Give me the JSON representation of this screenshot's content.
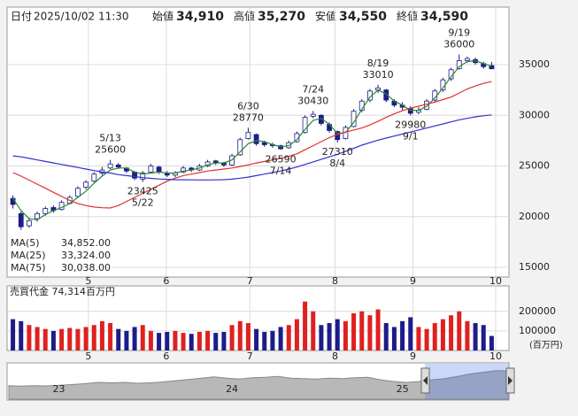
{
  "header": {
    "date_label": "日付",
    "datetime": "2025/10/02 11:30",
    "items": [
      {
        "label": "始値",
        "value": "34,910",
        "color": "#000000"
      },
      {
        "label": "高値",
        "value": "35,270",
        "color": "#e02020"
      },
      {
        "label": "安値",
        "value": "34,550",
        "color": "#1a9a1a"
      },
      {
        "label": "終値",
        "value": "34,590",
        "color": "#000000"
      }
    ]
  },
  "chart_data": [
    {
      "type": "candlestick",
      "categories": [
        null,
        null,
        null,
        null,
        null,
        null,
        null,
        null,
        null,
        null,
        null,
        null,
        null,
        null,
        null,
        null,
        null,
        null,
        null,
        null,
        null,
        null,
        null,
        null,
        null,
        null,
        null,
        null,
        null,
        null,
        null,
        null,
        null,
        null,
        null,
        null,
        null,
        null,
        null,
        null,
        null,
        null,
        null,
        null,
        null,
        null,
        null,
        null,
        null,
        null,
        null,
        null,
        null,
        null,
        null,
        null,
        null,
        null,
        null,
        null
      ],
      "open": [
        21800,
        20300,
        19100,
        19800,
        20300,
        20900,
        20700,
        21300,
        22000,
        22900,
        23500,
        24300,
        24800,
        25100,
        24800,
        24400,
        23700,
        24400,
        24900,
        24300,
        24100,
        24400,
        24800,
        24600,
        25000,
        25500,
        25300,
        25100,
        26100,
        27700,
        28100,
        27300,
        27100,
        27000,
        26800,
        27400,
        28300,
        29900,
        30000,
        29100,
        28400,
        27700,
        28900,
        30500,
        31500,
        32500,
        32500,
        31400,
        31000,
        30700,
        30300,
        30600,
        31500,
        32500,
        33600,
        34600,
        35400,
        35500,
        35100,
        34910
      ],
      "high": [
        22100,
        20500,
        19900,
        20500,
        21000,
        21100,
        21600,
        22100,
        23000,
        23600,
        24400,
        24900,
        25600,
        25300,
        24900,
        24500,
        24500,
        25200,
        25000,
        24500,
        24500,
        25000,
        24900,
        25200,
        25600,
        25600,
        25400,
        26200,
        27800,
        28770,
        28200,
        27500,
        27300,
        27100,
        27500,
        28400,
        30000,
        30430,
        30100,
        29300,
        28500,
        29000,
        30600,
        31600,
        32600,
        33010,
        32600,
        31600,
        31300,
        30900,
        30800,
        31600,
        32600,
        33700,
        34700,
        36000,
        35800,
        35700,
        35300,
        35270
      ],
      "low": [
        20800,
        18700,
        18900,
        19500,
        20100,
        20400,
        20600,
        21200,
        21900,
        22700,
        23400,
        24100,
        24700,
        24700,
        24300,
        23600,
        23425,
        24300,
        24200,
        23900,
        23900,
        24300,
        24400,
        24500,
        24900,
        25100,
        24900,
        25000,
        26000,
        27600,
        27000,
        26900,
        26800,
        26590,
        26700,
        27300,
        28200,
        29700,
        29000,
        28300,
        27310,
        27600,
        28800,
        30300,
        31300,
        32200,
        31300,
        30800,
        30500,
        29980,
        30100,
        30500,
        31300,
        32300,
        33400,
        34500,
        35200,
        35000,
        34600,
        34550
      ],
      "close": [
        21200,
        19000,
        19600,
        20300,
        20800,
        20600,
        21400,
        21900,
        22800,
        23400,
        24200,
        24600,
        25200,
        24900,
        24500,
        23800,
        24300,
        25000,
        24400,
        24100,
        24300,
        24800,
        24600,
        25000,
        25400,
        25300,
        25100,
        26000,
        27600,
        28300,
        27200,
        27100,
        27000,
        26700,
        27300,
        28200,
        29800,
        30100,
        29200,
        28500,
        27600,
        28800,
        30400,
        31400,
        32400,
        32700,
        31500,
        31000,
        30800,
        30200,
        30500,
        31400,
        32400,
        33500,
        34500,
        35400,
        35600,
        35200,
        34800,
        34590
      ],
      "up_color": "#ffffff",
      "down_color": "#1c1c8a",
      "outline": "#1c1c8a",
      "series": [
        {
          "name": "MA(5)",
          "color": "#2a8a2a",
          "legend_value": "34,852.00",
          "values": [
            21800,
            20600,
            19800,
            19700,
            20200,
            20600,
            20900,
            21300,
            21900,
            22500,
            23300,
            24000,
            24600,
            24800,
            24800,
            24400,
            24200,
            24300,
            24400,
            24300,
            24300,
            24500,
            24600,
            24800,
            25100,
            25300,
            25300,
            25600,
            26400,
            27200,
            27500,
            27400,
            27100,
            26900,
            27000,
            27600,
            28600,
            29500,
            29700,
            29100,
            28200,
            28300,
            29300,
            30600,
            31800,
            32500,
            32100,
            31400,
            31000,
            30500,
            30500,
            30900,
            31700,
            32700,
            33800,
            34800,
            35300,
            35400,
            35100,
            34852
          ]
        },
        {
          "name": "MA(25)",
          "color": "#e03030",
          "legend_value": "33,324.00",
          "values": [
            24350,
            24000,
            23600,
            23200,
            22800,
            22400,
            22000,
            21600,
            21300,
            21100,
            20950,
            20880,
            20850,
            21100,
            21500,
            21900,
            22300,
            22700,
            23100,
            23500,
            23800,
            24050,
            24200,
            24350,
            24500,
            24600,
            24700,
            24800,
            24950,
            25100,
            25300,
            25450,
            25600,
            25750,
            25950,
            26200,
            26600,
            27000,
            27400,
            27800,
            28100,
            28350,
            28550,
            28750,
            29050,
            29400,
            29800,
            30150,
            30450,
            30700,
            30900,
            31100,
            31300,
            31550,
            31800,
            32200,
            32600,
            32900,
            33150,
            33324
          ]
        },
        {
          "name": "MA(75)",
          "color": "#3030d0",
          "legend_value": "30,038.00",
          "values": [
            26000,
            25900,
            25750,
            25600,
            25450,
            25300,
            25150,
            25000,
            24850,
            24700,
            24550,
            24400,
            24300,
            24150,
            24050,
            23950,
            23850,
            23780,
            23720,
            23680,
            23650,
            23640,
            23630,
            23620,
            23620,
            23630,
            23650,
            23700,
            23800,
            23900,
            24050,
            24200,
            24350,
            24500,
            24700,
            24900,
            25150,
            25400,
            25650,
            25900,
            26150,
            26450,
            26750,
            27050,
            27300,
            27550,
            27750,
            27950,
            28150,
            28350,
            28550,
            28750,
            28950,
            29150,
            29350,
            29550,
            29700,
            29850,
            29950,
            30038
          ]
        }
      ],
      "annotations": [
        {
          "x": 12,
          "date": "5/13",
          "value": 25600,
          "position": "above"
        },
        {
          "x": 16,
          "date": "5/22",
          "value": 23425,
          "position": "below"
        },
        {
          "x": 29,
          "date": "6/30",
          "value": 28770,
          "position": "above"
        },
        {
          "x": 33,
          "date": "7/14",
          "value": 26590,
          "position": "below"
        },
        {
          "x": 37,
          "date": "7/24",
          "value": 30430,
          "position": "above"
        },
        {
          "x": 40,
          "date": "8/4",
          "value": 27310,
          "position": "below"
        },
        {
          "x": 45,
          "date": "8/19",
          "value": 33010,
          "position": "above"
        },
        {
          "x": 49,
          "date": "9/1",
          "value": 29980,
          "position": "below"
        },
        {
          "x": 55,
          "date": "9/19",
          "value": 36000,
          "position": "above"
        }
      ],
      "ylim": [
        14040,
        40680
      ],
      "yticks": [
        15000,
        20000,
        25000,
        30000,
        35000
      ],
      "xticks": [
        {
          "value": 9.3,
          "label": "5"
        },
        {
          "value": 18.9,
          "label": "6"
        },
        {
          "value": 29.2,
          "label": "7"
        },
        {
          "value": 39.7,
          "label": "8"
        },
        {
          "value": 49.3,
          "label": "9"
        },
        {
          "value": 59.5,
          "label": "10"
        }
      ],
      "grid": true
    },
    {
      "type": "bar",
      "title": "売買代金 74,314百万円",
      "unit": "(百万円)",
      "categories": [
        null,
        null,
        null,
        null,
        null,
        null,
        null,
        null,
        null,
        null,
        null,
        null,
        null,
        null,
        null,
        null,
        null,
        null,
        null,
        null,
        null,
        null,
        null,
        null,
        null,
        null,
        null,
        null,
        null,
        null,
        null,
        null,
        null,
        null,
        null,
        null,
        null,
        null,
        null,
        null,
        null,
        null,
        null,
        null,
        null,
        null,
        null,
        null,
        null,
        null,
        null,
        null,
        null,
        null,
        null,
        null,
        null,
        null,
        null,
        null
      ],
      "values": [
        160000,
        150000,
        130000,
        120000,
        110000,
        100000,
        110000,
        115000,
        110000,
        120000,
        130000,
        150000,
        140000,
        110000,
        100000,
        120000,
        130000,
        100000,
        90000,
        95000,
        100000,
        90000,
        85000,
        95000,
        100000,
        90000,
        95000,
        130000,
        150000,
        140000,
        110000,
        95000,
        100000,
        120000,
        130000,
        160000,
        250000,
        200000,
        130000,
        140000,
        160000,
        150000,
        190000,
        200000,
        180000,
        210000,
        140000,
        120000,
        150000,
        170000,
        120000,
        110000,
        140000,
        160000,
        180000,
        200000,
        150000,
        140000,
        130000,
        74314
      ],
      "up_color": "#e02020",
      "down_color": "#1c1c8a",
      "ylim": [
        0,
        330000
      ],
      "yticks": [
        100000,
        200000
      ],
      "xticks": [
        {
          "value": 9.3,
          "label": "5"
        },
        {
          "value": 18.9,
          "label": "6"
        },
        {
          "value": 29.2,
          "label": "7"
        },
        {
          "value": 39.7,
          "label": "8"
        },
        {
          "value": 49.3,
          "label": "9"
        },
        {
          "value": 59.5,
          "label": "10"
        }
      ]
    },
    {
      "type": "area",
      "values": [
        17000,
        16500,
        17000,
        16800,
        17500,
        18500,
        19500,
        21000,
        20500,
        21000,
        20000,
        20500,
        21500,
        23000,
        24500,
        26000,
        27500,
        26000,
        25000,
        26500,
        27000,
        28000,
        26000,
        25500,
        25000,
        26000,
        25500,
        26500,
        27000,
        24000,
        22000,
        21000,
        22000,
        24000,
        25500,
        28000,
        31000,
        33000,
        35000,
        34590
      ],
      "xlim": [
        0,
        39
      ],
      "ylim": [
        0,
        42000
      ],
      "xticks": [
        {
          "value": 3.9,
          "label": "23"
        },
        {
          "value": 17.4,
          "label": "24"
        },
        {
          "value": 30.7,
          "label": "25"
        }
      ],
      "color": "#b8b8b8"
    }
  ]
}
